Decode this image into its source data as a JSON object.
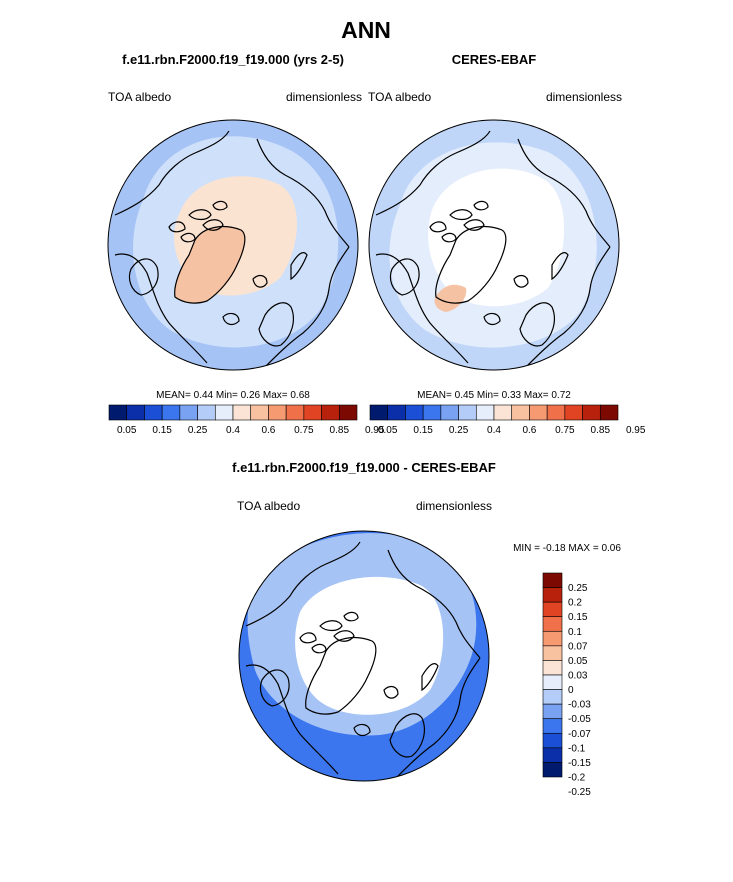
{
  "figure_title": "ANN",
  "chart_data": [
    {
      "type": "polar-contour-map",
      "projection": "north-polar-stereographic",
      "title": "f.e11.rbn.F2000.f19_f19.000 (yrs 2-5)",
      "left_label": "TOA albedo",
      "right_label": "dimensionless",
      "stats_text": "MEAN=   0.44  Min=   0.26  Max=   0.68",
      "stats": {
        "mean": 0.44,
        "min": 0.26,
        "max": 0.68
      },
      "levels": [
        "0.05",
        "0.15",
        "0.25",
        "0.4",
        "0.6",
        "0.75",
        "0.85",
        "0.95"
      ],
      "colorbar_colors": [
        "#001b6e",
        "#0a2fa8",
        "#1a4fd6",
        "#3b76ee",
        "#7aa2f2",
        "#b4cdf8",
        "#e6eefb",
        "#fbe4d5",
        "#f8c1a0",
        "#f69a72",
        "#f0704a",
        "#e04422",
        "#b8220c",
        "#7d0a02"
      ],
      "regions": [
        {
          "name": "ocean",
          "color": "#a6c3f5"
        },
        {
          "name": "subpolar band",
          "color": "#cfe0fa"
        },
        {
          "name": "arctic",
          "color": "#fbe3d2"
        },
        {
          "name": "greenland",
          "color": "#f6c2a4"
        }
      ]
    },
    {
      "type": "polar-contour-map",
      "projection": "north-polar-stereographic",
      "title": "CERES-EBAF",
      "left_label": "TOA albedo",
      "right_label": "dimensionless",
      "stats_text": "MEAN=   0.45  Min=   0.33  Max=   0.72",
      "stats": {
        "mean": 0.45,
        "min": 0.33,
        "max": 0.72
      },
      "levels": [
        "0.05",
        "0.15",
        "0.25",
        "0.4",
        "0.6",
        "0.75",
        "0.85",
        "0.95"
      ],
      "colorbar_colors": [
        "#001b6e",
        "#0a2fa8",
        "#1a4fd6",
        "#3b76ee",
        "#7aa2f2",
        "#b4cdf8",
        "#e6eefb",
        "#fbe4d5",
        "#f8c1a0",
        "#f69a72",
        "#f0704a",
        "#e04422",
        "#b8220c",
        "#7d0a02"
      ],
      "regions": [
        {
          "name": "ocean",
          "color": "#c0d6f8"
        },
        {
          "name": "subpolar band",
          "color": "#e4edfb"
        },
        {
          "name": "arctic",
          "color": "#ffffff"
        },
        {
          "name": "greenland",
          "color": "#f6c2a4"
        }
      ]
    },
    {
      "type": "polar-contour-map",
      "projection": "north-polar-stereographic",
      "title": "f.e11.rbn.F2000.f19_f19.000 - CERES-EBAF",
      "left_label": "TOA albedo",
      "right_label": "dimensionless",
      "stats_text": "MIN =  -0.18 MAX =   0.06",
      "stats": {
        "min": -0.18,
        "max": 0.06
      },
      "levels": [
        "0.25",
        "0.2",
        "0.15",
        "0.1",
        "0.07",
        "0.05",
        "0.03",
        "0",
        "-0.03",
        "-0.05",
        "-0.07",
        "-0.1",
        "-0.15",
        "-0.2",
        "-0.25"
      ],
      "colorbar_colors": [
        "#7d0a02",
        "#b8220c",
        "#e04422",
        "#f0704a",
        "#f69a72",
        "#f8c1a0",
        "#fbe4d5",
        "#e6eefb",
        "#b4cdf8",
        "#7aa2f2",
        "#3b76ee",
        "#1a4fd6",
        "#0a2fa8",
        "#001b6e"
      ],
      "regions": [
        {
          "name": "ocean",
          "color": "#3b76ee"
        },
        {
          "name": "mid latitudes",
          "color": "#a6c3f5"
        },
        {
          "name": "arctic",
          "color": "#ffffff"
        }
      ]
    }
  ]
}
